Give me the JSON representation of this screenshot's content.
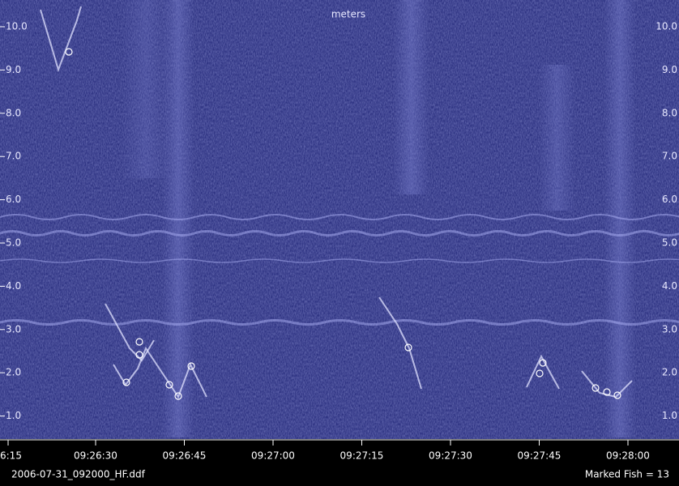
{
  "screen": {
    "axis_title": "meters",
    "depth_labels": [
      "10.0",
      "9.0",
      "8.0",
      "7.0",
      "6.0",
      "5.0",
      "4.0",
      "3.0",
      "2.0",
      "1.0"
    ],
    "time_labels": [
      "6:15",
      "09:26:30",
      "09:26:45",
      "09:27:00",
      "09:27:15",
      "09:27:30",
      "09:27:45",
      "09:28:00"
    ],
    "status": {
      "file": "2006-07-31_092000_HF.ddf",
      "marked_fish": "Marked Fish = 13"
    }
  }
}
